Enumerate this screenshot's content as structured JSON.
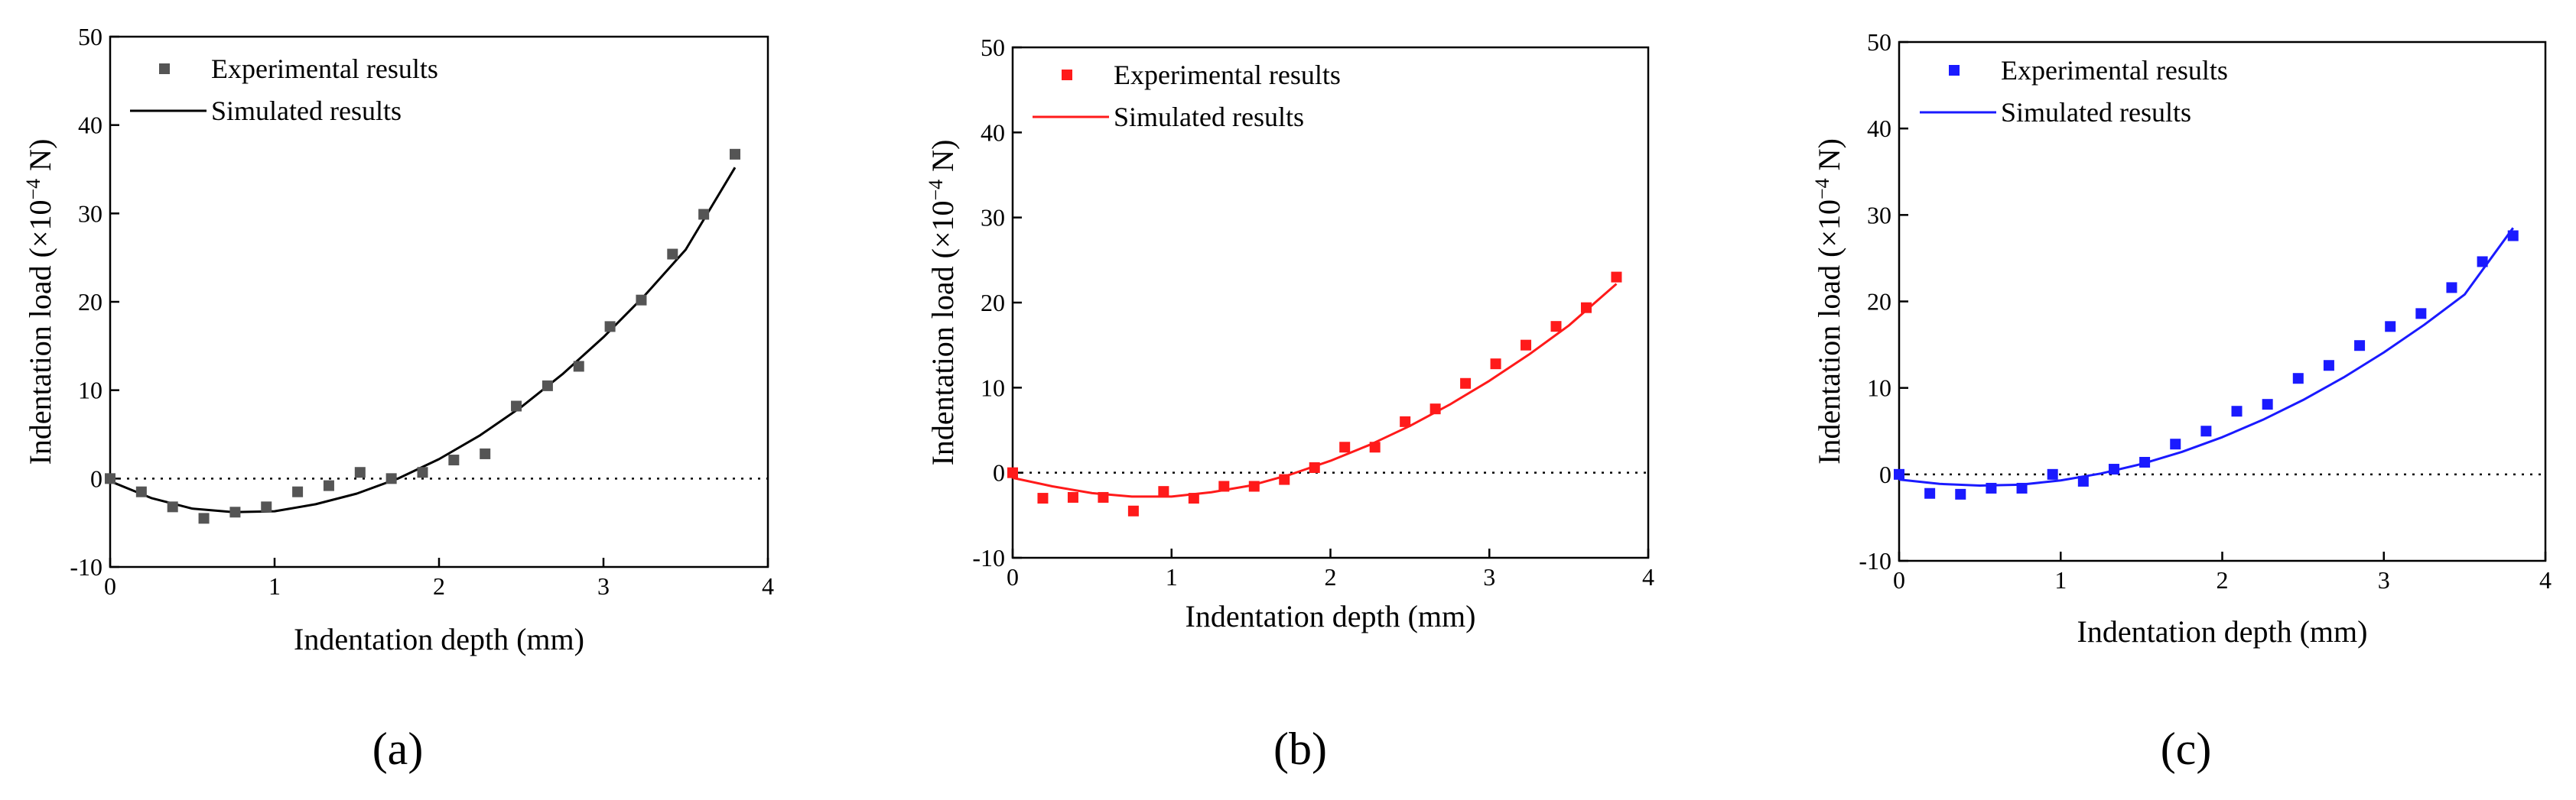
{
  "chart_data": [
    {
      "type": "scatter",
      "panel_label": "(a)",
      "color": "#555555",
      "title": "",
      "xlabel": "Indentation depth (mm)",
      "ylabel_main": "Indentation load (×10",
      "ylabel_exp": "−4",
      "ylabel_unit": " N)",
      "xlim": [
        0,
        4
      ],
      "ylim": [
        -10,
        50
      ],
      "xticks": [
        "0",
        "1",
        "2",
        "3",
        "4"
      ],
      "yticks": [
        "-10",
        "0",
        "10",
        "20",
        "30",
        "40",
        "50"
      ],
      "reference_line_y": 0,
      "legend": [
        "Experimental results",
        "Simulated results"
      ],
      "series": [
        {
          "name": "Experimental results",
          "kind": "scatter",
          "x": [
            0,
            0.19,
            0.38,
            0.57,
            0.76,
            0.95,
            1.14,
            1.33,
            1.52,
            1.71,
            1.9,
            2.09,
            2.28,
            2.47,
            2.66,
            2.85,
            3.04,
            3.23,
            3.42,
            3.61,
            3.8
          ],
          "y": [
            0,
            -1.5,
            -3.2,
            -4.5,
            -3.8,
            -3.2,
            -1.5,
            -0.8,
            0.7,
            0,
            0.7,
            2.1,
            2.8,
            8.2,
            10.5,
            12.7,
            17.2,
            20.2,
            25.4,
            29.9,
            36.7
          ]
        },
        {
          "name": "Simulated results",
          "kind": "line",
          "x": [
            0,
            0.25,
            0.5,
            0.75,
            1.0,
            1.25,
            1.5,
            1.75,
            2.0,
            2.25,
            2.5,
            2.75,
            3.0,
            3.25,
            3.5,
            3.8
          ],
          "y": [
            -0.3,
            -2.2,
            -3.4,
            -3.8,
            -3.7,
            -2.9,
            -1.7,
            0,
            2.2,
            4.9,
            8.1,
            11.8,
            16.0,
            20.7,
            25.9,
            35.2
          ]
        }
      ]
    },
    {
      "type": "scatter",
      "panel_label": "(b)",
      "color": "#ff1a1a",
      "title": "",
      "xlabel": "Indentation depth (mm)",
      "ylabel_main": "Indentation load (×10",
      "ylabel_exp": "−4",
      "ylabel_unit": " N)",
      "xlim": [
        0,
        4
      ],
      "ylim": [
        -10,
        50
      ],
      "xticks": [
        "0",
        "1",
        "2",
        "3",
        "4"
      ],
      "yticks": [
        "-10",
        "0",
        "10",
        "20",
        "30",
        "40",
        "50"
      ],
      "reference_line_y": 0,
      "legend": [
        "Experimental results",
        "Simulated results"
      ],
      "series": [
        {
          "name": "Experimental results",
          "kind": "scatter",
          "x": [
            0,
            0.19,
            0.38,
            0.57,
            0.76,
            0.95,
            1.14,
            1.33,
            1.52,
            1.71,
            1.9,
            2.09,
            2.28,
            2.47,
            2.66,
            2.85,
            3.04,
            3.23,
            3.42,
            3.61,
            3.8
          ],
          "y": [
            0,
            -3.0,
            -2.9,
            -2.9,
            -4.5,
            -2.2,
            -3.0,
            -1.6,
            -1.6,
            -0.8,
            0.6,
            3.0,
            3.0,
            6.0,
            7.5,
            10.5,
            12.8,
            15.0,
            17.2,
            19.4,
            23.0
          ]
        },
        {
          "name": "Simulated results",
          "kind": "line",
          "x": [
            0,
            0.25,
            0.5,
            0.75,
            1.0,
            1.25,
            1.5,
            1.75,
            2.0,
            2.25,
            2.5,
            2.75,
            3.0,
            3.25,
            3.5,
            3.8
          ],
          "y": [
            -0.6,
            -1.6,
            -2.4,
            -2.8,
            -2.8,
            -2.3,
            -1.5,
            -0.2,
            1.4,
            3.3,
            5.5,
            8.0,
            10.8,
            13.9,
            17.3,
            22.2
          ]
        }
      ]
    },
    {
      "type": "scatter",
      "panel_label": "(c)",
      "color": "#1a1aff",
      "title": "",
      "xlabel": "Indentation depth (mm)",
      "ylabel_main": "Indentation load (×10",
      "ylabel_exp": "−4",
      "ylabel_unit": " N)",
      "xlim": [
        0,
        4
      ],
      "ylim": [
        -10,
        50
      ],
      "xticks": [
        "0",
        "1",
        "2",
        "3",
        "4"
      ],
      "yticks": [
        "-10",
        "0",
        "10",
        "20",
        "30",
        "40",
        "50"
      ],
      "reference_line_y": 0,
      "legend": [
        "Experimental results",
        "Simulated results"
      ],
      "series": [
        {
          "name": "Experimental results",
          "kind": "scatter",
          "x": [
            0,
            0.19,
            0.38,
            0.57,
            0.76,
            0.95,
            1.14,
            1.33,
            1.52,
            1.71,
            1.9,
            2.09,
            2.28,
            2.47,
            2.66,
            2.85,
            3.04,
            3.23,
            3.42,
            3.61,
            3.8
          ],
          "y": [
            0,
            -2.2,
            -2.3,
            -1.6,
            -1.6,
            0,
            -0.8,
            0.6,
            1.4,
            3.5,
            5.0,
            7.3,
            8.1,
            11.1,
            12.6,
            14.9,
            17.1,
            18.6,
            21.6,
            24.6,
            27.6
          ]
        },
        {
          "name": "Simulated results",
          "kind": "line",
          "x": [
            0,
            0.25,
            0.5,
            0.75,
            1.0,
            1.25,
            1.5,
            1.75,
            2.0,
            2.25,
            2.5,
            2.75,
            3.0,
            3.25,
            3.5,
            3.8
          ],
          "y": [
            -0.6,
            -1.1,
            -1.3,
            -1.2,
            -0.7,
            0.1,
            1.2,
            2.6,
            4.3,
            6.3,
            8.6,
            11.2,
            14.1,
            17.3,
            20.8,
            28.5
          ]
        }
      ]
    }
  ]
}
